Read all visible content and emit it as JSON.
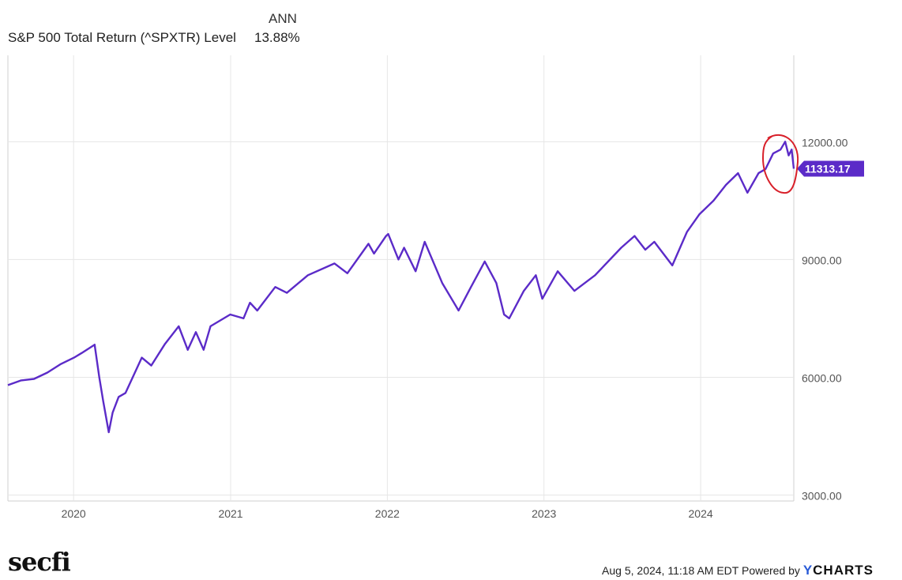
{
  "legend": {
    "header": "ANN",
    "series_name": "S&P 500 Total Return (^SPXTR) Level",
    "series_value": "13.88%"
  },
  "footer": {
    "brand": "secfi",
    "timestamp": "Aug 5, 2024, 11:18 AM EDT",
    "powered_by": "Powered by",
    "provider_mark": "Y",
    "provider_rest": "CHARTS"
  },
  "colors": {
    "series": "#5b2bc8",
    "annotation": "#d8202a",
    "grid": "#e6e6e6",
    "axis_text": "#555555"
  },
  "chart_data": {
    "type": "line",
    "title": "",
    "xlabel": "",
    "ylabel": "",
    "x_ticks": [
      "2020",
      "2021",
      "2022",
      "2023",
      "2024"
    ],
    "y_ticks": [
      {
        "value": 3000,
        "label": "3000.00"
      },
      {
        "value": 6000,
        "label": "6000.00"
      },
      {
        "value": 9000,
        "label": "9000.00"
      },
      {
        "value": 12000,
        "label": "12000.00"
      }
    ],
    "ylim": [
      2850,
      14200
    ],
    "xlim": [
      "2019-08-01",
      "2024-08-05"
    ],
    "grid": true,
    "last_value_label": "11313.17",
    "annotation": "red circle around 2024 peak",
    "series": [
      {
        "values": [
          [
            "2019-08-01",
            5800
          ],
          [
            "2019-09-01",
            5920
          ],
          [
            "2019-10-01",
            5960
          ],
          [
            "2019-11-01",
            6120
          ],
          [
            "2019-12-01",
            6330
          ],
          [
            "2020-01-02",
            6500
          ],
          [
            "2020-01-20",
            6620
          ],
          [
            "2020-02-19",
            6830
          ],
          [
            "2020-03-01",
            6000
          ],
          [
            "2020-03-10",
            5400
          ],
          [
            "2020-03-23",
            4600
          ],
          [
            "2020-04-01",
            5100
          ],
          [
            "2020-04-15",
            5500
          ],
          [
            "2020-05-01",
            5600
          ],
          [
            "2020-06-08",
            6500
          ],
          [
            "2020-06-30",
            6300
          ],
          [
            "2020-08-01",
            6850
          ],
          [
            "2020-09-02",
            7300
          ],
          [
            "2020-09-23",
            6700
          ],
          [
            "2020-10-12",
            7150
          ],
          [
            "2020-10-30",
            6700
          ],
          [
            "2020-11-15",
            7300
          ],
          [
            "2020-12-31",
            7600
          ],
          [
            "2021-01-31",
            7500
          ],
          [
            "2021-02-15",
            7900
          ],
          [
            "2021-03-04",
            7700
          ],
          [
            "2021-04-15",
            8300
          ],
          [
            "2021-05-12",
            8150
          ],
          [
            "2021-06-30",
            8600
          ],
          [
            "2021-08-31",
            8900
          ],
          [
            "2021-09-30",
            8650
          ],
          [
            "2021-11-18",
            9400
          ],
          [
            "2021-12-01",
            9150
          ],
          [
            "2021-12-29",
            9600
          ],
          [
            "2022-01-03",
            9650
          ],
          [
            "2022-01-27",
            9000
          ],
          [
            "2022-02-09",
            9300
          ],
          [
            "2022-03-08",
            8700
          ],
          [
            "2022-03-29",
            9450
          ],
          [
            "2022-05-09",
            8400
          ],
          [
            "2022-06-16",
            7700
          ],
          [
            "2022-07-15",
            8300
          ],
          [
            "2022-08-16",
            8950
          ],
          [
            "2022-09-12",
            8400
          ],
          [
            "2022-09-30",
            7600
          ],
          [
            "2022-10-12",
            7500
          ],
          [
            "2022-11-15",
            8200
          ],
          [
            "2022-12-13",
            8600
          ],
          [
            "2022-12-28",
            8000
          ],
          [
            "2023-02-02",
            8700
          ],
          [
            "2023-03-13",
            8200
          ],
          [
            "2023-04-30",
            8600
          ],
          [
            "2023-06-30",
            9300
          ],
          [
            "2023-07-31",
            9600
          ],
          [
            "2023-08-25",
            9250
          ],
          [
            "2023-09-15",
            9450
          ],
          [
            "2023-10-27",
            8850
          ],
          [
            "2023-11-30",
            9700
          ],
          [
            "2023-12-29",
            10150
          ],
          [
            "2024-01-31",
            10500
          ],
          [
            "2024-02-29",
            10900
          ],
          [
            "2024-03-28",
            11200
          ],
          [
            "2024-04-19",
            10700
          ],
          [
            "2024-05-15",
            11200
          ],
          [
            "2024-05-31",
            11300
          ],
          [
            "2024-06-18",
            11700
          ],
          [
            "2024-07-05",
            11800
          ],
          [
            "2024-07-16",
            12000
          ],
          [
            "2024-07-24",
            11650
          ],
          [
            "2024-07-31",
            11800
          ],
          [
            "2024-08-05",
            11313.17
          ]
        ]
      }
    ]
  }
}
